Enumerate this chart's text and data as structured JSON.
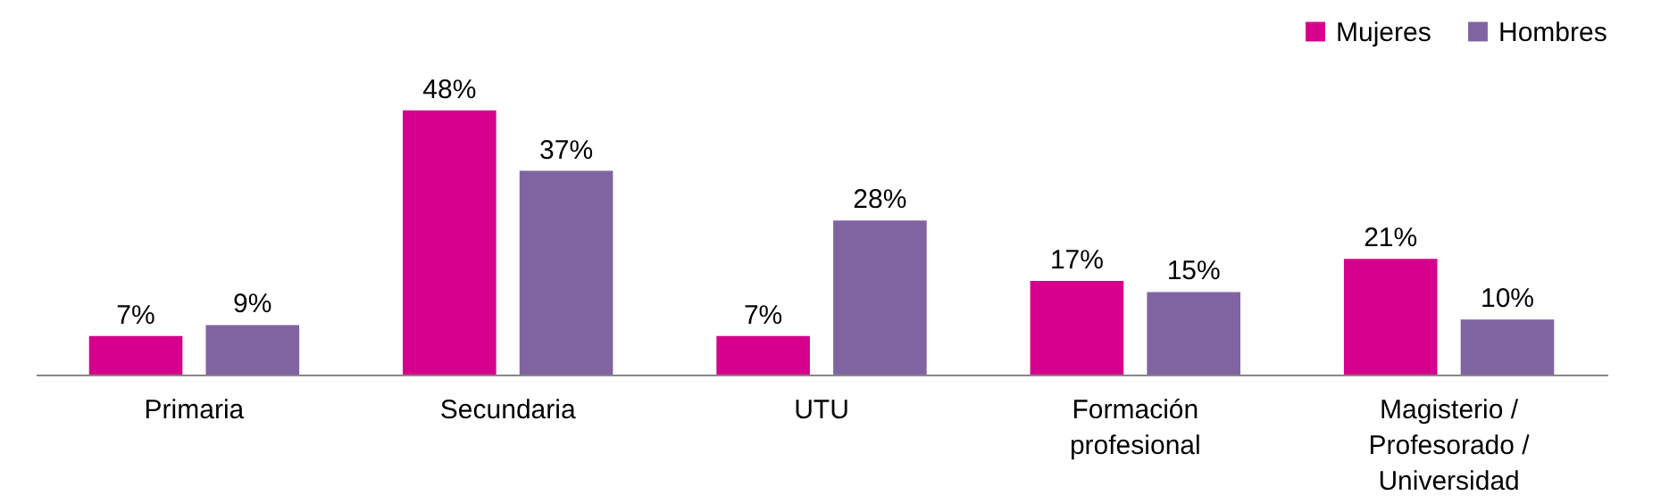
{
  "chart_data": {
    "type": "bar",
    "categories": [
      "Primaria",
      "Secundaria",
      "UTU",
      "Formación profesional",
      "Magisterio / Profesorado / Universidad"
    ],
    "series": [
      {
        "name": "Mujeres",
        "color": "#d6008c",
        "values": [
          7,
          48,
          7,
          17,
          21
        ],
        "value_labels": [
          "7%",
          "48%",
          "7%",
          "17%",
          "21%"
        ]
      },
      {
        "name": "Hombres",
        "color": "#8064a2",
        "values": [
          9,
          37,
          28,
          15,
          10
        ],
        "value_labels": [
          "9%",
          "37%",
          "28%",
          "15%",
          "10%"
        ]
      }
    ],
    "legend": "top right",
    "grid": false
  }
}
